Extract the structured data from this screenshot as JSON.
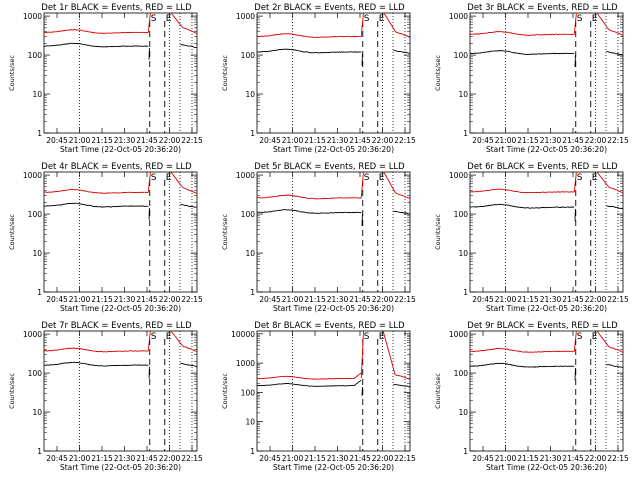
{
  "chart_data": {
    "type": "line",
    "layout_grid": "3x3",
    "y_scale": "log",
    "ylim": [
      1,
      1000
    ],
    "ylabel": "Counts/sec",
    "xlabel": "Start Time (22-Oct-05 20:36:20)",
    "x_tick_labels": [
      "20:45",
      "21:00",
      "21:15",
      "21:30",
      "21:45",
      "22:00",
      "22:15"
    ],
    "y_tick_labels": [
      "1",
      "10",
      "100",
      "1000"
    ],
    "series_colors": {
      "events": "#000000",
      "lld": "#dd0000"
    },
    "interval_markers": [
      "S",
      "E"
    ],
    "panels": [
      {
        "title": "Det 1r BLACK = Events, RED = LLD",
        "events_level": 170,
        "lld_level": 380,
        "flare_peak": 1000
      },
      {
        "title": "Det 2r BLACK = Events, RED = LLD",
        "events_level": 120,
        "lld_level": 300,
        "flare_peak": 1000
      },
      {
        "title": "Det 3r BLACK = Events, RED = LLD",
        "events_level": 110,
        "lld_level": 340,
        "flare_peak": 1000
      },
      {
        "title": "Det 4r BLACK = Events, RED = LLD",
        "events_level": 160,
        "lld_level": 360,
        "flare_peak": 1000
      },
      {
        "title": "Det 5r BLACK = Events, RED = LLD",
        "events_level": 110,
        "lld_level": 260,
        "flare_peak": 1000
      },
      {
        "title": "Det 6r BLACK = Events, RED = LLD",
        "events_level": 150,
        "lld_level": 370,
        "flare_peak": 1000
      },
      {
        "title": "Det 7r BLACK = Events, RED = LLD",
        "events_level": 160,
        "lld_level": 370,
        "flare_peak": 1000
      },
      {
        "title": "Det 8r BLACK = Events, RED = LLD",
        "events_level": 170,
        "lld_level": 300,
        "flare_peak": 10000,
        "y_tick_labels": [
          "1",
          "10",
          "100",
          "1000",
          "10000"
        ],
        "ylim": [
          1,
          10000
        ]
      },
      {
        "title": "Det 9r BLACK = Events, RED = LLD",
        "events_level": 150,
        "lld_level": 360,
        "flare_peak": 1000
      }
    ]
  }
}
